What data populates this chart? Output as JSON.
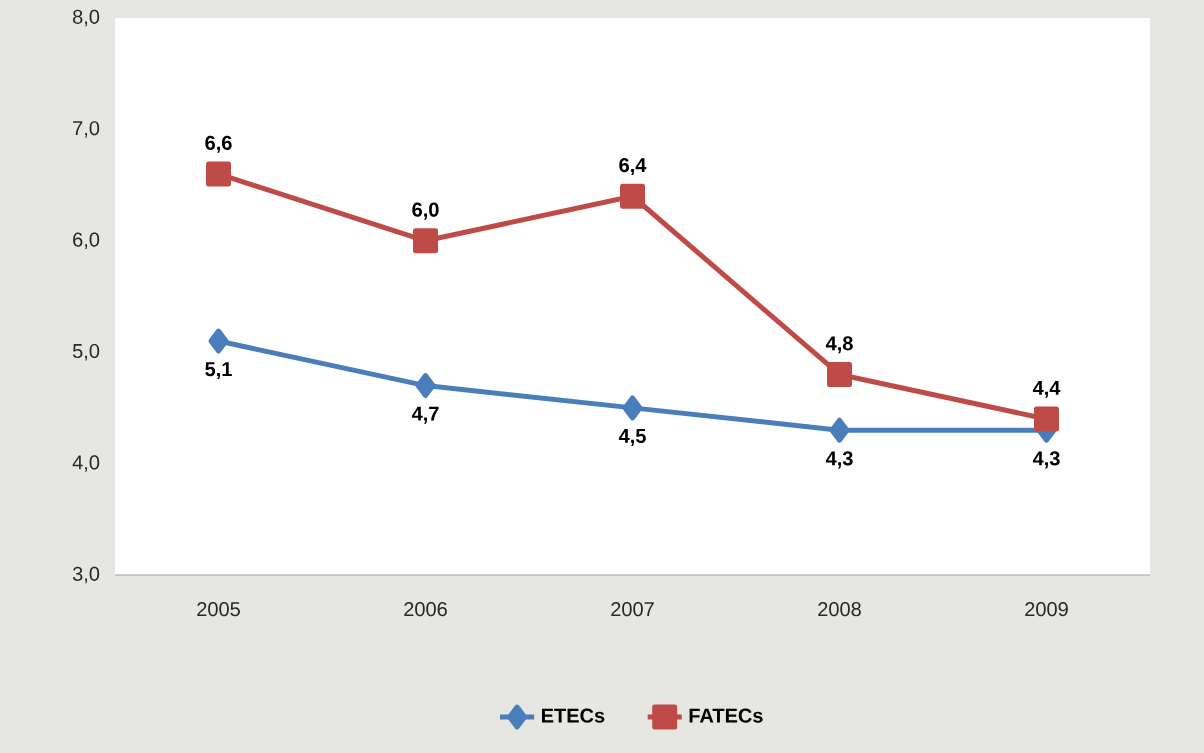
{
  "chart_data": {
    "type": "line",
    "categories": [
      "2005",
      "2006",
      "2007",
      "2008",
      "2009"
    ],
    "series": [
      {
        "name": "ETECs",
        "color": "#4a7ebb",
        "marker": "diamond",
        "values": [
          5.1,
          4.7,
          4.5,
          4.3,
          4.3
        ],
        "value_labels": [
          "5,1",
          "4,7",
          "4,5",
          "4,3",
          "4,3"
        ]
      },
      {
        "name": "FATECs",
        "color": "#be4b48",
        "marker": "square",
        "values": [
          6.6,
          6.0,
          6.4,
          4.8,
          4.4
        ],
        "value_labels": [
          "6,6",
          "6,0",
          "6,4",
          "4,8",
          "4,4"
        ]
      }
    ],
    "ylim": [
      3,
      8
    ],
    "yticks": [
      {
        "value": 3,
        "label": "3,0"
      },
      {
        "value": 4,
        "label": "4,0"
      },
      {
        "value": 5,
        "label": "5,0"
      },
      {
        "value": 6,
        "label": "6,0"
      },
      {
        "value": 7,
        "label": "7,0"
      },
      {
        "value": 8,
        "label": "8,0"
      }
    ],
    "grid": false,
    "legend": "bottom",
    "line_style": "solid"
  }
}
